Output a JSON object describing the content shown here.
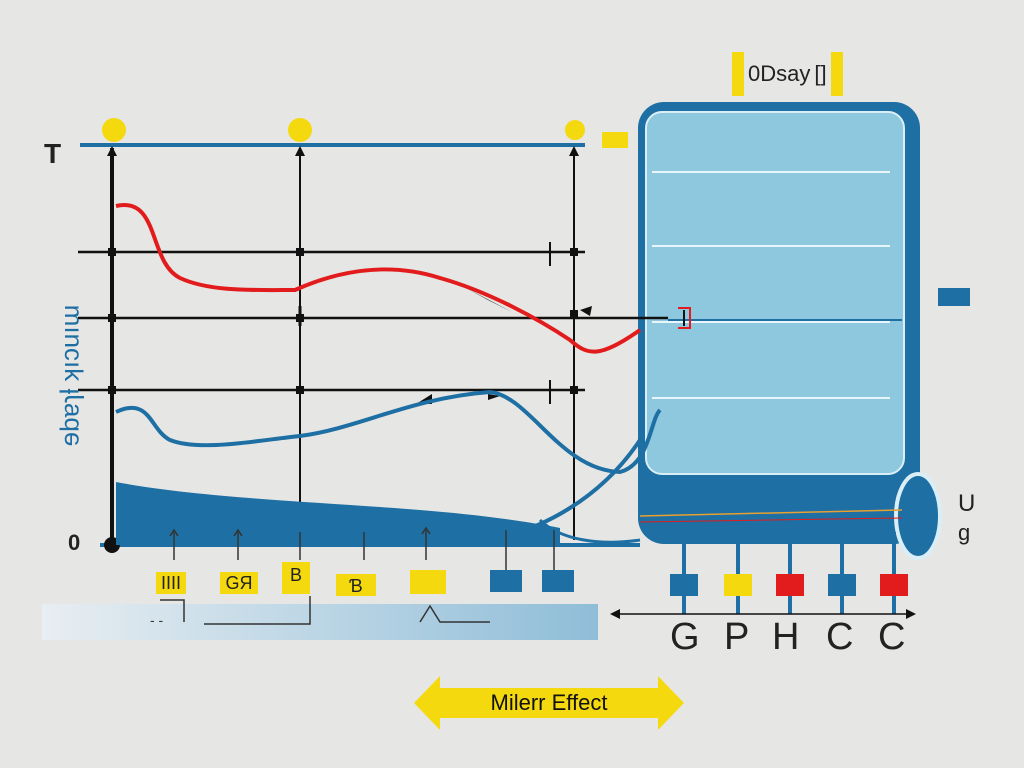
{
  "labels": {
    "axis_top": "T",
    "axis_origin": "0",
    "side_rotated": "ɘbɐɿƚ ʞıɔuıɯ",
    "top_tag": "0Dsay",
    "top_tag_suffix": "[]",
    "right_u": "U",
    "right_g": "ɡ",
    "dots": "- -",
    "bottom_small": [
      "IIII",
      "GЯ",
      "B",
      "Ɓ",
      ""
    ]
  },
  "bottom_letters": [
    "G",
    "P",
    "H",
    "C",
    "C"
  ],
  "banner": {
    "text": "Milerr Effect"
  },
  "colors": {
    "background": "#e6e6e4",
    "blue": "#1e6fa3",
    "light_blue": "#8ec8de",
    "red": "#e21c1c",
    "yellow": "#f5d90f",
    "black": "#111111"
  },
  "square_colors": [
    "blue",
    "yellow",
    "red",
    "blue",
    "red"
  ]
}
